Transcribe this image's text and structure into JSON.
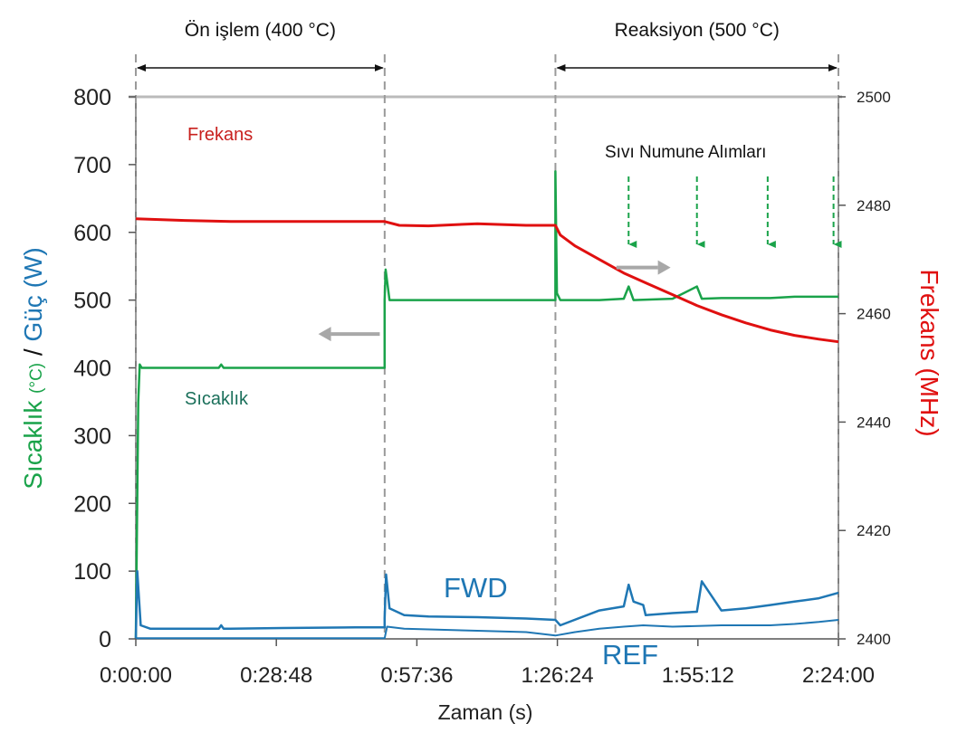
{
  "chart_data": {
    "type": "line",
    "xlabel": "Zaman (s)",
    "ylabel_left": {
      "part1": "Sıcaklık ",
      "unit": "(°C)",
      "sep": " / ",
      "part2": "Güç (W)"
    },
    "ylabel_right": "Frekans (MHz)",
    "x_ticks": [
      "0:00:00",
      "0:28:48",
      "0:57:36",
      "1:26:24",
      "1:55:12",
      "2:24:00"
    ],
    "x_tick_minutes": [
      0,
      28.8,
      57.6,
      86.4,
      115.2,
      144
    ],
    "xlim_minutes": [
      0,
      144
    ],
    "ylim_left": [
      0,
      800
    ],
    "yticks_left": [
      "0",
      "100",
      "200",
      "300",
      "400",
      "500",
      "600",
      "700",
      "800"
    ],
    "ylim_right": [
      2400,
      2500
    ],
    "yticks_right": [
      "2400",
      "2420",
      "2440",
      "2460",
      "2480",
      "2500"
    ],
    "phases": [
      {
        "label": "Ön işlem (400 °C)",
        "start_min": 0,
        "end_min": 51
      },
      {
        "label": "Reaksiyon (500 °C)",
        "start_min": 86,
        "end_min": 144
      }
    ],
    "phase_boundaries_min": [
      51,
      86
    ],
    "annotations": {
      "frekans": "Frekans",
      "sicaklik": "Sıcaklık",
      "fwd": "FWD",
      "ref": "REF",
      "sampling": "Sıvı Numune Alımları"
    },
    "sampling_times_min": [
      101,
      115,
      129.5,
      143
    ],
    "colors": {
      "temperature": "#1aa34a",
      "power": "#1f77b4",
      "frequency": "#e01010",
      "arrow": "#a8a8a8"
    },
    "series": [
      {
        "name": "Sıcaklık",
        "axis": "left",
        "x_min": [
          0,
          0.5,
          0.8,
          1.2,
          3,
          10,
          17,
          17.5,
          18,
          30,
          45,
          51,
          51,
          51.2,
          52,
          60,
          70,
          80,
          86,
          86,
          86.3,
          87,
          95,
          100,
          101,
          102,
          110,
          115,
          116,
          120,
          130,
          135,
          140,
          144
        ],
        "y": [
          0,
          350,
          405,
          400,
          400,
          400,
          400,
          405,
          400,
          400,
          400,
          400,
          500,
          545,
          500,
          500,
          500,
          500,
          500,
          690,
          510,
          500,
          500,
          502,
          520,
          500,
          502,
          520,
          502,
          503,
          503,
          505,
          505,
          505
        ]
      },
      {
        "name": "FWD",
        "axis": "left",
        "x_min": [
          0,
          0.3,
          1,
          3,
          10,
          17,
          17.5,
          18,
          30,
          45,
          51,
          51,
          51.3,
          52,
          55,
          60,
          70,
          80,
          86,
          87,
          95,
          100,
          101,
          102,
          104,
          104.5,
          110,
          115,
          116,
          120,
          125,
          130,
          135,
          140,
          144
        ],
        "y": [
          0,
          100,
          20,
          15,
          15,
          15,
          20,
          15,
          16,
          17,
          17,
          30,
          95,
          45,
          35,
          33,
          32,
          30,
          28,
          20,
          42,
          48,
          80,
          55,
          50,
          35,
          38,
          40,
          85,
          42,
          45,
          50,
          55,
          60,
          68
        ]
      },
      {
        "name": "REF",
        "axis": "left",
        "x_min": [
          0,
          10,
          20,
          30,
          40,
          51,
          51.5,
          55,
          60,
          70,
          80,
          86,
          90,
          95,
          100,
          104,
          110,
          120,
          130,
          135,
          140,
          144
        ],
        "y": [
          1,
          1,
          1,
          1,
          1,
          1,
          18,
          15,
          14,
          12,
          10,
          5,
          10,
          15,
          18,
          20,
          18,
          20,
          20,
          22,
          25,
          28
        ]
      },
      {
        "name": "Frekans",
        "axis": "right",
        "x_min": [
          0,
          10,
          20,
          30,
          40,
          51,
          54,
          60,
          70,
          80,
          86,
          87,
          90,
          95,
          100,
          105,
          110,
          115,
          120,
          125,
          130,
          135,
          140,
          144
        ],
        "y": [
          2477.5,
          2477.2,
          2477.0,
          2477.0,
          2477.0,
          2477.0,
          2476.3,
          2476.2,
          2476.6,
          2476.3,
          2476.3,
          2474.5,
          2472.5,
          2470.0,
          2467.5,
          2465.5,
          2463.5,
          2461.5,
          2459.8,
          2458.3,
          2457.0,
          2456.0,
          2455.3,
          2454.8
        ]
      }
    ]
  }
}
